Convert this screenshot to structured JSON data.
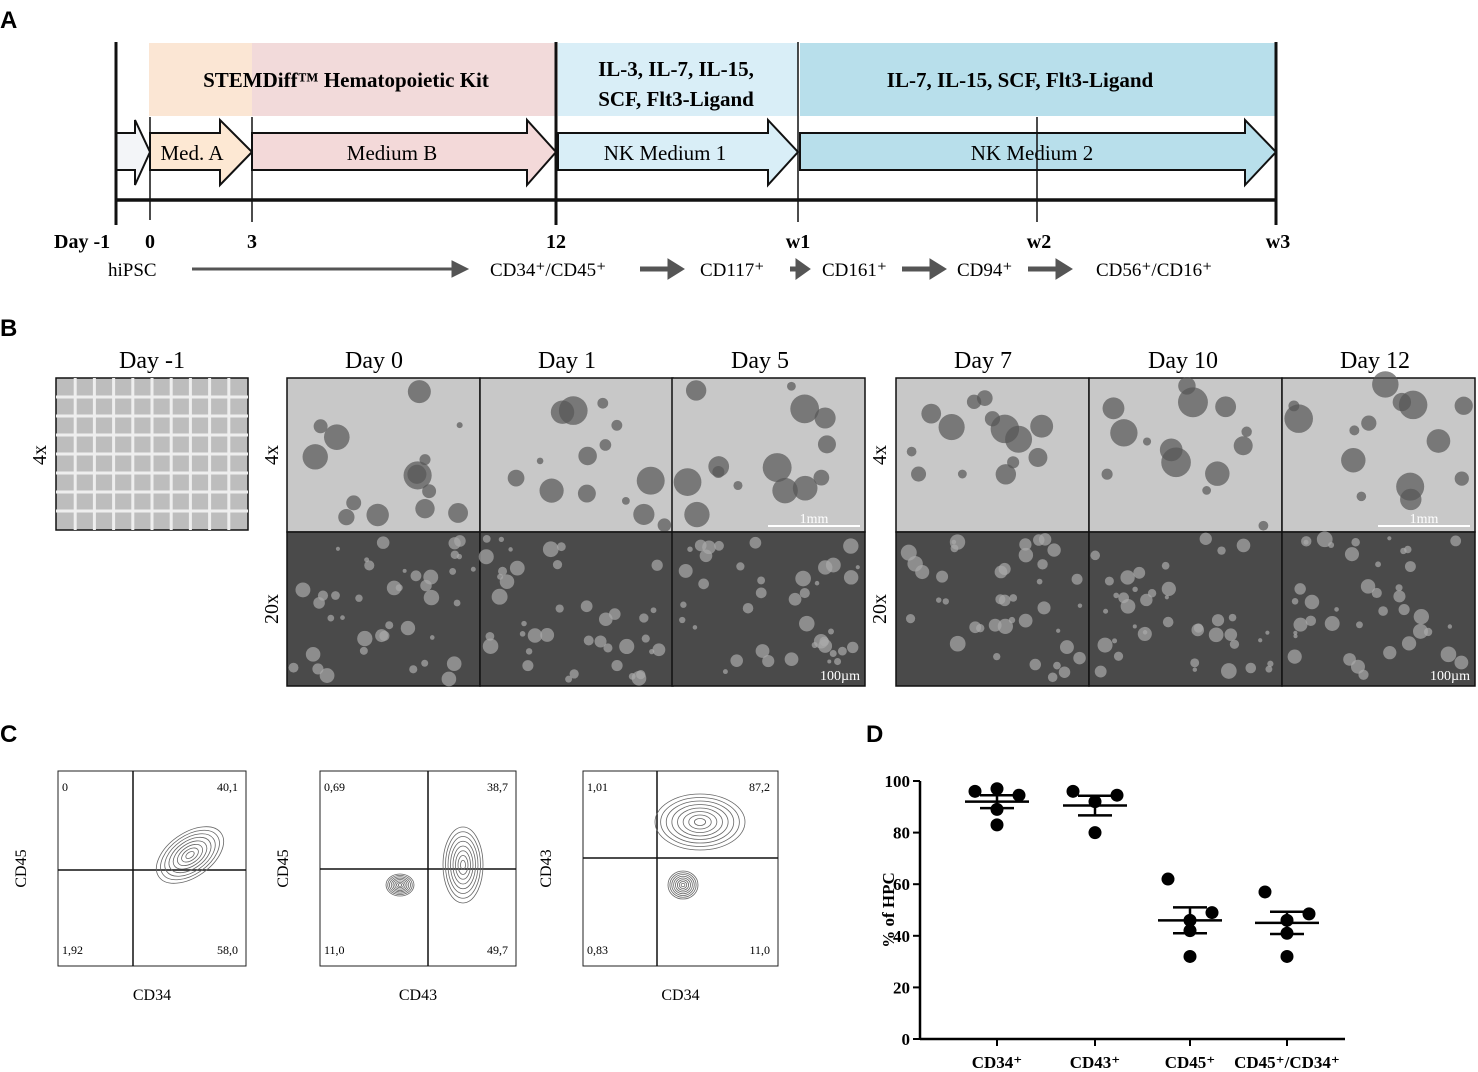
{
  "panel_labels": {
    "a": "A",
    "b": "B",
    "c": "C",
    "d": "D"
  },
  "panel_a": {
    "stages": [
      {
        "header": "STEMDiff™ Hematopoietic Kit",
        "color": "#fbe6d4"
      },
      {
        "header": "",
        "color": "#f2dada"
      },
      {
        "header_line1": "IL-3, IL-7, IL-15,",
        "header_line2": "SCF, Flt3-Ligand",
        "color": "#d9eef7"
      },
      {
        "header": "IL-7, IL-15, SCF, Flt3-Ligand",
        "color": "#b8dfeb"
      }
    ],
    "media": [
      "Med. A",
      "Medium B",
      "NK Medium 1",
      "NK Medium 2"
    ],
    "media_colors": [
      "#fde8d3",
      "#f3d9d9",
      "#d9eef7",
      "#b8dfeb"
    ],
    "timepoints": [
      "Day -1",
      "0",
      "3",
      "12",
      "w1",
      "w2",
      "w3"
    ],
    "markers": [
      "hiPSC",
      "CD34⁺/CD45⁺",
      "CD117⁺",
      "CD161⁺",
      "CD94⁺",
      "CD56⁺/CD16⁺"
    ]
  },
  "panel_b": {
    "titles": [
      "Day -1",
      "Day 0",
      "Day 1",
      "Day 5",
      "Day 7",
      "Day 10",
      "Day 12"
    ],
    "magnifications": [
      "4x",
      "20x"
    ],
    "scale_bars": {
      "low": "1mm",
      "high": "100µm"
    }
  },
  "panel_c": {
    "plots": [
      {
        "xlabel": "CD34",
        "ylabel": "CD45",
        "quadrants": {
          "ul": "0",
          "ur": "40,1",
          "ll": "1,92",
          "lr": "58,0"
        }
      },
      {
        "xlabel": "CD43",
        "ylabel": "CD45",
        "quadrants": {
          "ul": "0,69",
          "ur": "38,7",
          "ll": "11,0",
          "lr": "49,7"
        }
      },
      {
        "xlabel": "CD34",
        "ylabel": "CD43",
        "quadrants": {
          "ul": "1,01",
          "ur": "87,2",
          "ll": "0,83",
          "lr": "11,0"
        }
      }
    ]
  },
  "chart_data": {
    "type": "scatter",
    "title": "",
    "xlabel": "",
    "ylabel": "% of HPC",
    "ylim": [
      0,
      100
    ],
    "yticks": [
      "0",
      "20",
      "40",
      "60",
      "80",
      "100"
    ],
    "categories": [
      "CD34⁺",
      "CD43⁺",
      "CD45⁺",
      "CD45⁺/CD34⁺"
    ],
    "points": [
      [
        96,
        97,
        94.5,
        89,
        83
      ],
      [
        96,
        92,
        94.5,
        80
      ],
      [
        62,
        46,
        49,
        42,
        32
      ],
      [
        57,
        46,
        48.5,
        41,
        32
      ]
    ],
    "mean": [
      92,
      90.5,
      46,
      45
    ],
    "sem": [
      2.5,
      3.8,
      5,
      4.3
    ],
    "grid": false,
    "marker_color": "#000000"
  }
}
